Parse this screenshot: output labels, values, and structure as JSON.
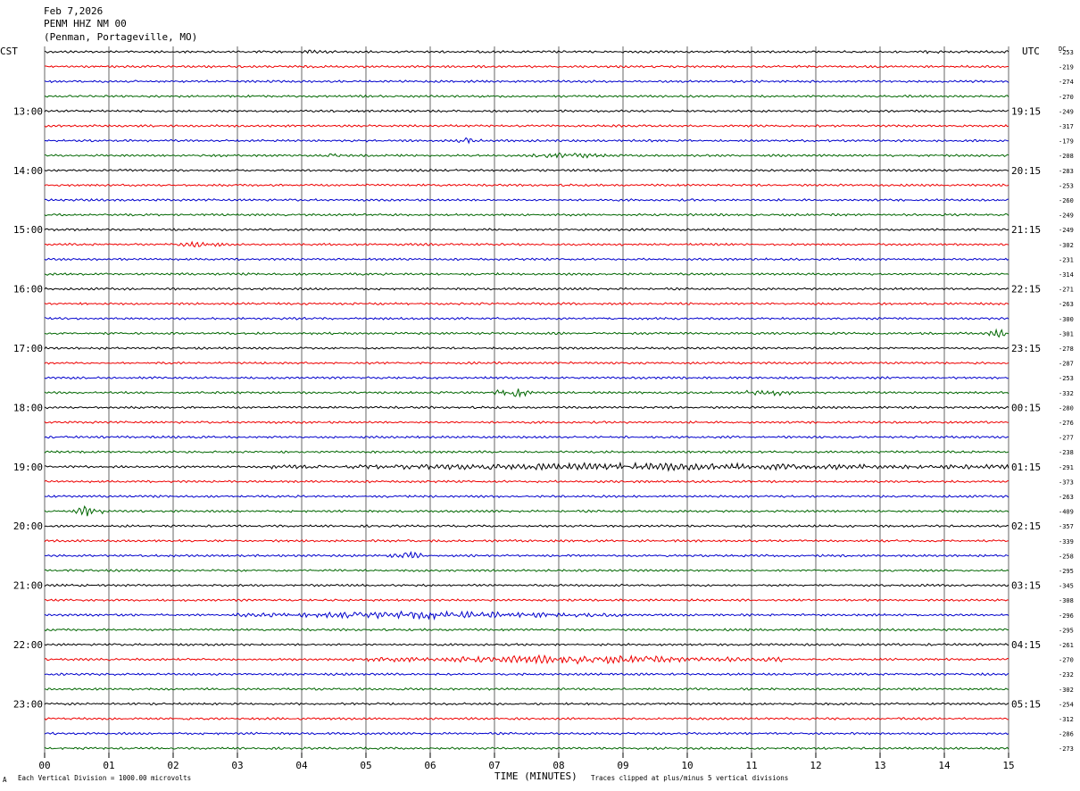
{
  "header": {
    "date": "Feb 7,2026",
    "station": "PENM HHZ NM 00",
    "location": "(Penman, Portageville, MO)"
  },
  "left_tz": "CST",
  "right_tz": "UTC",
  "dc_header": "DC",
  "footer": {
    "scale_note": "Each Vertical Division = 1000.00 microvolts",
    "axis_title": "TIME (MINUTES)",
    "clip_note": "Traces clipped at plus/minus 5 vertical divisions",
    "corner_mark": "A"
  },
  "colors": {
    "trace_cycle": [
      "#000000",
      "#ee0000",
      "#0000cc",
      "#006600"
    ],
    "grid": "#000000",
    "background": "#ffffff"
  },
  "chart_data": {
    "type": "line",
    "title": "PENM HHZ NM 00",
    "xlabel": "TIME (MINUTES)",
    "ylabel": "",
    "xlim": [
      0,
      15
    ],
    "x_ticks": [
      "00",
      "01",
      "02",
      "03",
      "04",
      "05",
      "06",
      "07",
      "08",
      "09",
      "10",
      "11",
      "12",
      "13",
      "14",
      "15"
    ],
    "traces_per_hour": 4,
    "left_hour_labels": [
      "13:00",
      "14:00",
      "15:00",
      "16:00",
      "17:00",
      "18:00",
      "19:00",
      "20:00",
      "21:00",
      "22:00",
      "23:00"
    ],
    "right_hour_labels": [
      "19:15",
      "20:15",
      "21:15",
      "22:15",
      "23:15",
      "00:15",
      "01:15",
      "02:15",
      "03:15",
      "04:15",
      "05:15"
    ],
    "hour_label_first_row": 4,
    "dc_offsets": [
      -253,
      -219,
      -274,
      -270,
      -249,
      -317,
      -179,
      -208,
      -283,
      -253,
      -260,
      -249,
      -249,
      -302,
      -231,
      -314,
      -271,
      -263,
      -300,
      -301,
      -278,
      -287,
      -253,
      -332,
      -280,
      -276,
      -277,
      -238,
      -291,
      -373,
      -263,
      -409,
      -357,
      -339,
      -258,
      -295,
      -345,
      -308,
      -296,
      -295,
      -261,
      -270,
      -232,
      -302,
      -254,
      -312,
      -286,
      -273
    ],
    "events": [
      {
        "row": 0,
        "start": 4.0,
        "end": 4.4,
        "amp": 1.2
      },
      {
        "row": 0,
        "start": 13.5,
        "end": 14.0,
        "amp": 1.2
      },
      {
        "row": 6,
        "start": 6.4,
        "end": 6.8,
        "amp": 2.2
      },
      {
        "row": 7,
        "start": 4.3,
        "end": 4.6,
        "amp": 1.3
      },
      {
        "row": 7,
        "start": 7.5,
        "end": 8.8,
        "amp": 1.8
      },
      {
        "row": 13,
        "start": 2.0,
        "end": 2.9,
        "amp": 1.8
      },
      {
        "row": 19,
        "start": 14.7,
        "end": 15.0,
        "amp": 3.5
      },
      {
        "row": 23,
        "start": 7.0,
        "end": 7.6,
        "amp": 4.0
      },
      {
        "row": 23,
        "start": 10.9,
        "end": 11.6,
        "amp": 3.0
      },
      {
        "row": 28,
        "start": 3.5,
        "end": 15.0,
        "amp": 2.8
      },
      {
        "row": 31,
        "start": 0.4,
        "end": 0.9,
        "amp": 4.0
      },
      {
        "row": 34,
        "start": 5.4,
        "end": 5.9,
        "amp": 3.5
      },
      {
        "row": 38,
        "start": 3.0,
        "end": 9.0,
        "amp": 2.8
      },
      {
        "row": 41,
        "start": 4.8,
        "end": 11.5,
        "amp": 3.2
      }
    ]
  }
}
